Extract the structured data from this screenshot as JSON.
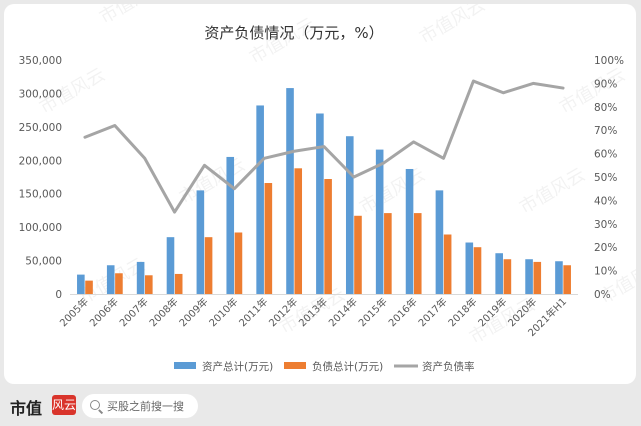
{
  "chart_data": {
    "type": "bar",
    "title": "资产负债情况（万元，%）",
    "categories": [
      "2005年",
      "2006年",
      "2007年",
      "2008年",
      "2009年",
      "2010年",
      "2011年",
      "2012年",
      "2013年",
      "2014年",
      "2015年",
      "2016年",
      "2017年",
      "2018年",
      "2019年",
      "2020年",
      "2021年H1"
    ],
    "series": [
      {
        "name": "资产总计(万元)",
        "type": "bar",
        "axis": "left",
        "color": "#5b9bd5",
        "values": [
          29000,
          43000,
          48000,
          85000,
          155000,
          205000,
          282000,
          308000,
          270000,
          236000,
          216000,
          187000,
          155000,
          77000,
          61000,
          52000,
          49000
        ]
      },
      {
        "name": "负债总计(万元)",
        "type": "bar",
        "axis": "left",
        "color": "#ed7d31",
        "values": [
          20000,
          31000,
          28000,
          30000,
          85000,
          92000,
          166000,
          188000,
          172000,
          117000,
          121000,
          121000,
          89000,
          70000,
          52000,
          48000,
          43000
        ]
      },
      {
        "name": "资产负债率",
        "type": "line",
        "axis": "right",
        "color": "#a5a5a5",
        "values": [
          67,
          72,
          58,
          35,
          55,
          45,
          58,
          61,
          63,
          50,
          56,
          65,
          58,
          91,
          86,
          90,
          88
        ]
      }
    ],
    "left_axis": {
      "min": 0,
      "max": 350000,
      "ticks": [
        "0",
        "50,000",
        "100,000",
        "150,000",
        "200,000",
        "250,000",
        "300,000",
        "350,000"
      ]
    },
    "right_axis": {
      "min": 0,
      "max": 100,
      "ticks": [
        "0%",
        "10%",
        "20%",
        "30%",
        "40%",
        "50%",
        "60%",
        "70%",
        "80%",
        "90%",
        "100%"
      ]
    },
    "legend_position": "bottom",
    "grid": false,
    "watermark": "市值风云"
  },
  "footer": {
    "brand": "市值",
    "brand_mark": "风云",
    "search_placeholder": "买股之前搜一搜"
  }
}
